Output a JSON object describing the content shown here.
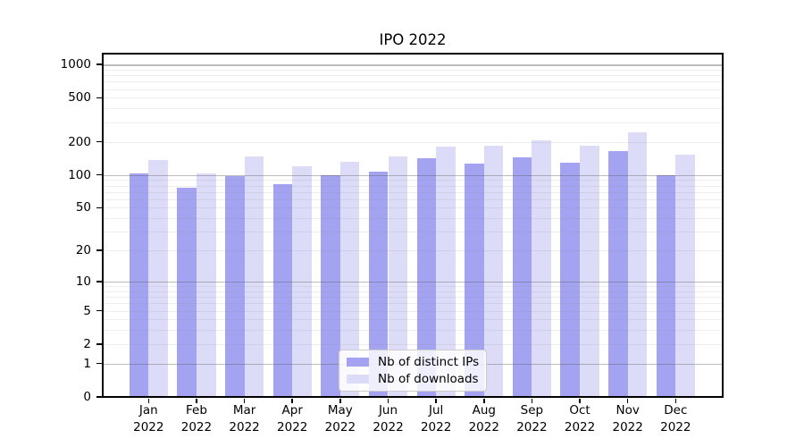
{
  "chart_data": {
    "type": "bar",
    "title": "IPO 2022",
    "categories": [
      {
        "month": "Jan",
        "year": "2022"
      },
      {
        "month": "Feb",
        "year": "2022"
      },
      {
        "month": "Mar",
        "year": "2022"
      },
      {
        "month": "Apr",
        "year": "2022"
      },
      {
        "month": "May",
        "year": "2022"
      },
      {
        "month": "Jun",
        "year": "2022"
      },
      {
        "month": "Jul",
        "year": "2022"
      },
      {
        "month": "Aug",
        "year": "2022"
      },
      {
        "month": "Sep",
        "year": "2022"
      },
      {
        "month": "Oct",
        "year": "2022"
      },
      {
        "month": "Nov",
        "year": "2022"
      },
      {
        "month": "Dec",
        "year": "2022"
      }
    ],
    "series": [
      {
        "name": "Nb of distinct IPs",
        "color": "#a3a3f1",
        "values": [
          104,
          77,
          97,
          83,
          99,
          108,
          143,
          126,
          145,
          130,
          165,
          99
        ]
      },
      {
        "name": "Nb of downloads",
        "color": "#dcdcf9",
        "values": [
          136,
          103,
          146,
          120,
          131,
          148,
          180,
          186,
          208,
          186,
          244,
          153
        ]
      }
    ],
    "y_axis": {
      "scale": "log1p",
      "tick_values": [
        0,
        1,
        2,
        5,
        10,
        20,
        50,
        100,
        200,
        500,
        1000
      ],
      "tick_labels": [
        "0",
        "1",
        "2",
        "5",
        "10",
        "20",
        "50",
        "100",
        "200",
        "500",
        "1000"
      ],
      "major_gridline_values": [
        1,
        10,
        100,
        1000
      ],
      "minor_gridline_values": [
        3,
        4,
        6,
        7,
        8,
        9,
        30,
        40,
        60,
        70,
        80,
        90,
        300,
        400,
        600,
        700,
        800,
        900
      ],
      "max": 1280
    },
    "xlabel": "",
    "ylabel": "",
    "grid": true,
    "legend_position": "lower center"
  }
}
